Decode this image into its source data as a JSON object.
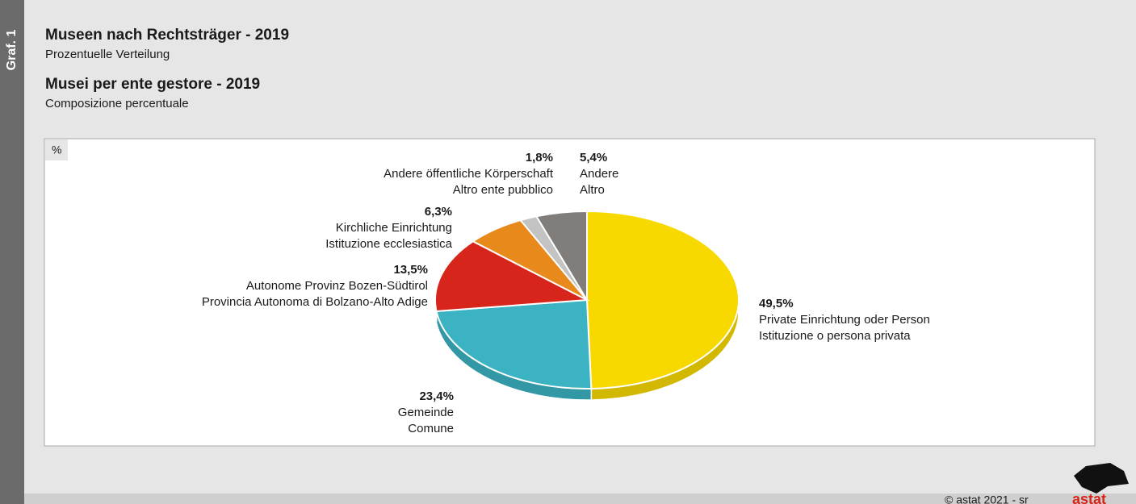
{
  "side_label": "Graf. 1",
  "footer": "© astat 2021 - sr",
  "logo": "astat",
  "chart_data": {
    "type": "pie",
    "title": "Museen nach Rechtsträger - 2019",
    "subtitle": "Prozentuelle Verteilung",
    "title_it": "Musei per ente gestore - 2019",
    "subtitle_it": "Composizione percentuale",
    "unit": "%",
    "categories": [
      "Private Einrichtung oder Person",
      "Gemeinde",
      "Autonome Provinz Bozen-Südtirol",
      "Kirchliche Einrichtung",
      "Andere öffentliche Körperschaft",
      "Andere"
    ],
    "categories_it": [
      "Istituzione o persona privata",
      "Comune",
      "Provincia Autonoma di Bolzano-Alto Adige",
      "Istituzione ecclesiastica",
      "Altro ente pubblico",
      "Altro"
    ],
    "values": [
      49.5,
      23.4,
      13.5,
      6.3,
      1.8,
      5.4
    ],
    "value_labels": [
      "49,5%",
      "23,4%",
      "13,5%",
      "6,3%",
      "1,8%",
      "5,4%"
    ],
    "colors": [
      "#f7d900",
      "#3bb3c3",
      "#d8251c",
      "#e8891c",
      "#c3c3c3",
      "#807d7b"
    ]
  }
}
